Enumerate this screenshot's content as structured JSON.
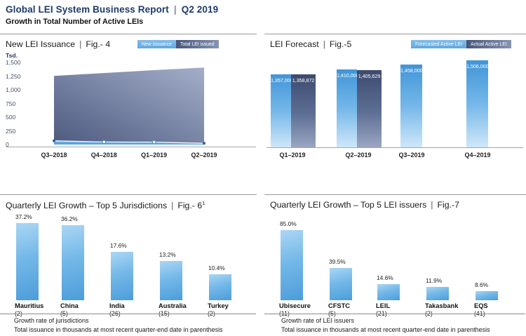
{
  "header": {
    "title": "Global LEI System Business Report",
    "period": "Q2 2019",
    "subtitle": "Growth in Total Number of Active LEIs"
  },
  "colors": {
    "header_navy": "#1d3a6d",
    "light_blue_series": "#4d9dda",
    "light_blue_fade": "#cfe7f9",
    "dark_navy_series": "#3c4a6e",
    "dark_navy_fade": "#9aa6c1",
    "axis_text": "#44546a",
    "baseline_gray": "#a6a6a6"
  },
  "chart_data": [
    {
      "id": "new_lei_issuance",
      "type": "area",
      "title": "New LEI Issuance",
      "fig": "Fig.- 4",
      "legend": [
        "New issuance",
        "Total LEI issued"
      ],
      "ylabel": "Tsd.",
      "yticks": [
        "1,500",
        "1,250",
        "1,000",
        "750",
        "500",
        "250",
        "0"
      ],
      "ylim": [
        0,
        1500
      ],
      "categories": [
        "Q3–2018",
        "Q4–2018",
        "Q1–2019",
        "Q2–2019"
      ],
      "series": [
        {
          "name": "New issuance",
          "values": [
            68,
            46,
            44,
            22
          ],
          "note": "estimated from plot, thousands"
        },
        {
          "name": "Total LEI issued",
          "values": [
            1252,
            1306,
            1359,
            1406
          ],
          "note": "estimated from plot, thousands"
        }
      ]
    },
    {
      "id": "lei_forecast",
      "type": "bar",
      "title": "LEI Forecast",
      "fig": "Fig.-5",
      "legend": [
        "Forecasted Active LEI",
        "Actual Active LEI"
      ],
      "categories": [
        "Q1–2019",
        "Q2–2019",
        "Q3–2019",
        "Q4–2019"
      ],
      "series": [
        {
          "name": "Forecasted Active LEI",
          "values": [
            1357000,
            1410000,
            1458000,
            1506000
          ],
          "labels": [
            "1,357,000",
            "1,410,000",
            "1,458,000",
            "1,506,000"
          ]
        },
        {
          "name": "Actual Active LEI",
          "values": [
            1358872,
            1405629,
            null,
            null
          ],
          "labels": [
            "1,358,872",
            "1,405,629",
            null,
            null
          ]
        }
      ]
    },
    {
      "id": "quarterly_growth_jurisdictions",
      "type": "bar",
      "title": "Quarterly LEI Growth – Top 5 Jurisdictions",
      "fig": "Fig.- 6",
      "fig_sup": "1",
      "categories": [
        "Mauritius",
        "China",
        "India",
        "Australia",
        "Turkey"
      ],
      "issuance_counts": [
        "(2)",
        "(5)",
        "(26)",
        "(15)",
        "(2)"
      ],
      "values": [
        37.2,
        36.2,
        17.6,
        13.2,
        10.4
      ],
      "value_labels": [
        "37.2%",
        "36.2%",
        "17.6%",
        "13.2%",
        "10.4%"
      ],
      "footnotes": [
        "Growth rate of jurisdictions",
        "Total issuance in thousands at most recent quarter-end date in parenthesis"
      ]
    },
    {
      "id": "quarterly_growth_issuers",
      "type": "bar",
      "title": "Quarterly LEI Growth – Top 5 LEI issuers",
      "fig": "Fig.-7",
      "categories": [
        "Ubisecure",
        "CFSTC",
        "LEIL",
        "Takasbank",
        "EQS"
      ],
      "issuance_counts": [
        "(11)",
        "(5)",
        "(21)",
        "(2)",
        "(41)"
      ],
      "values": [
        85.0,
        39.5,
        14.6,
        11.9,
        8.6
      ],
      "value_labels": [
        "85.0%",
        "39.5%",
        "14.6%",
        "11.9%",
        "8.6%"
      ],
      "footnotes": [
        "Growth rate of LEI issuers",
        "Total issuance in thousands at most recent quarter-end date in parenthesis"
      ]
    }
  ]
}
